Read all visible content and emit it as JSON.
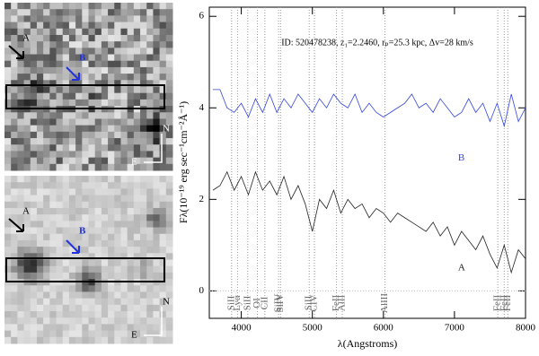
{
  "chart_data": {
    "type": "line",
    "title": "ID: 520478238, z₁=2.2460, rₚ=25.3 kpc, Δv=28 km/s",
    "xlabel": "λ(Angstroms)",
    "ylabel": "Fλ(10⁻¹⁹ erg sec⁻¹cm⁻²Å⁻¹)",
    "x": [
      3600,
      3700,
      3800,
      3900,
      4000,
      4100,
      4200,
      4300,
      4400,
      4500,
      4600,
      4700,
      4800,
      4900,
      5000,
      5100,
      5200,
      5300,
      5400,
      5500,
      5600,
      5700,
      5800,
      5900,
      6000,
      6100,
      6200,
      6300,
      6400,
      6500,
      6600,
      6700,
      6800,
      6900,
      7000,
      7100,
      7200,
      7300,
      7400,
      7500,
      7600,
      7700,
      7800,
      7900,
      8000
    ],
    "series": [
      {
        "name": "B",
        "color": "#3344dd",
        "values": [
          4.4,
          4.4,
          4.0,
          3.9,
          4.1,
          3.8,
          4.2,
          3.9,
          4.3,
          3.9,
          4.2,
          4.0,
          4.3,
          4.1,
          3.9,
          4.2,
          4.0,
          4.3,
          4.1,
          4.0,
          4.3,
          3.9,
          4.1,
          3.9,
          3.8,
          3.9,
          4.0,
          4.1,
          4.3,
          4.0,
          4.1,
          3.9,
          4.2,
          4.0,
          3.8,
          3.9,
          4.2,
          3.9,
          4.1,
          3.7,
          4.1,
          3.6,
          4.3,
          3.7,
          4.0
        ],
        "label_x": 7050,
        "label_y": 2.9
      },
      {
        "name": "A",
        "color": "#222222",
        "values": [
          2.2,
          2.3,
          2.6,
          2.2,
          2.5,
          2.1,
          2.6,
          2.2,
          2.4,
          2.1,
          2.5,
          2.0,
          2.3,
          1.9,
          1.3,
          2.0,
          1.8,
          2.2,
          1.7,
          2.0,
          1.8,
          1.9,
          1.6,
          1.8,
          1.7,
          1.5,
          1.7,
          1.6,
          1.5,
          1.4,
          1.3,
          1.5,
          1.2,
          1.4,
          1.0,
          1.3,
          1.1,
          0.9,
          1.2,
          0.8,
          0.5,
          1.0,
          0.4,
          0.9,
          0.7
        ],
        "label_x": 7050,
        "label_y": 0.5
      }
    ],
    "lines": [
      {
        "x": 3863,
        "label": "SiII"
      },
      {
        "x": 3947,
        "label": "Lyα"
      },
      {
        "x": 4091,
        "label": "SiII"
      },
      {
        "x": 4227,
        "label": "OI"
      },
      {
        "x": 4332,
        "label": "CII"
      },
      {
        "x": 4525,
        "label": "SiIV"
      },
      {
        "x": 4554,
        "label": "SiIV"
      },
      {
        "x": 4956,
        "label": "SiII"
      },
      {
        "x": 5029,
        "label": "CIV"
      },
      {
        "x": 5340,
        "label": "FeII"
      },
      {
        "x": 5422,
        "label": "AlII"
      },
      {
        "x": 6022,
        "label": "AlIII"
      },
      {
        "x": 7610,
        "label": "FeII"
      },
      {
        "x": 7700,
        "label": "FeII"
      },
      {
        "x": 7750,
        "label": "FeII"
      }
    ],
    "xlim": [
      3550,
      8000
    ],
    "xticks": [
      4000,
      5000,
      6000,
      7000,
      8000
    ],
    "ylim": [
      -0.6,
      6.2
    ],
    "yticks": [
      0,
      2,
      4,
      6
    ]
  },
  "panels": [
    {
      "labels": {
        "a": "A",
        "b": "B",
        "n": "N",
        "e": "E"
      }
    },
    {
      "labels": {
        "a": "A",
        "b": "B",
        "n": "N",
        "e": "E"
      }
    }
  ]
}
